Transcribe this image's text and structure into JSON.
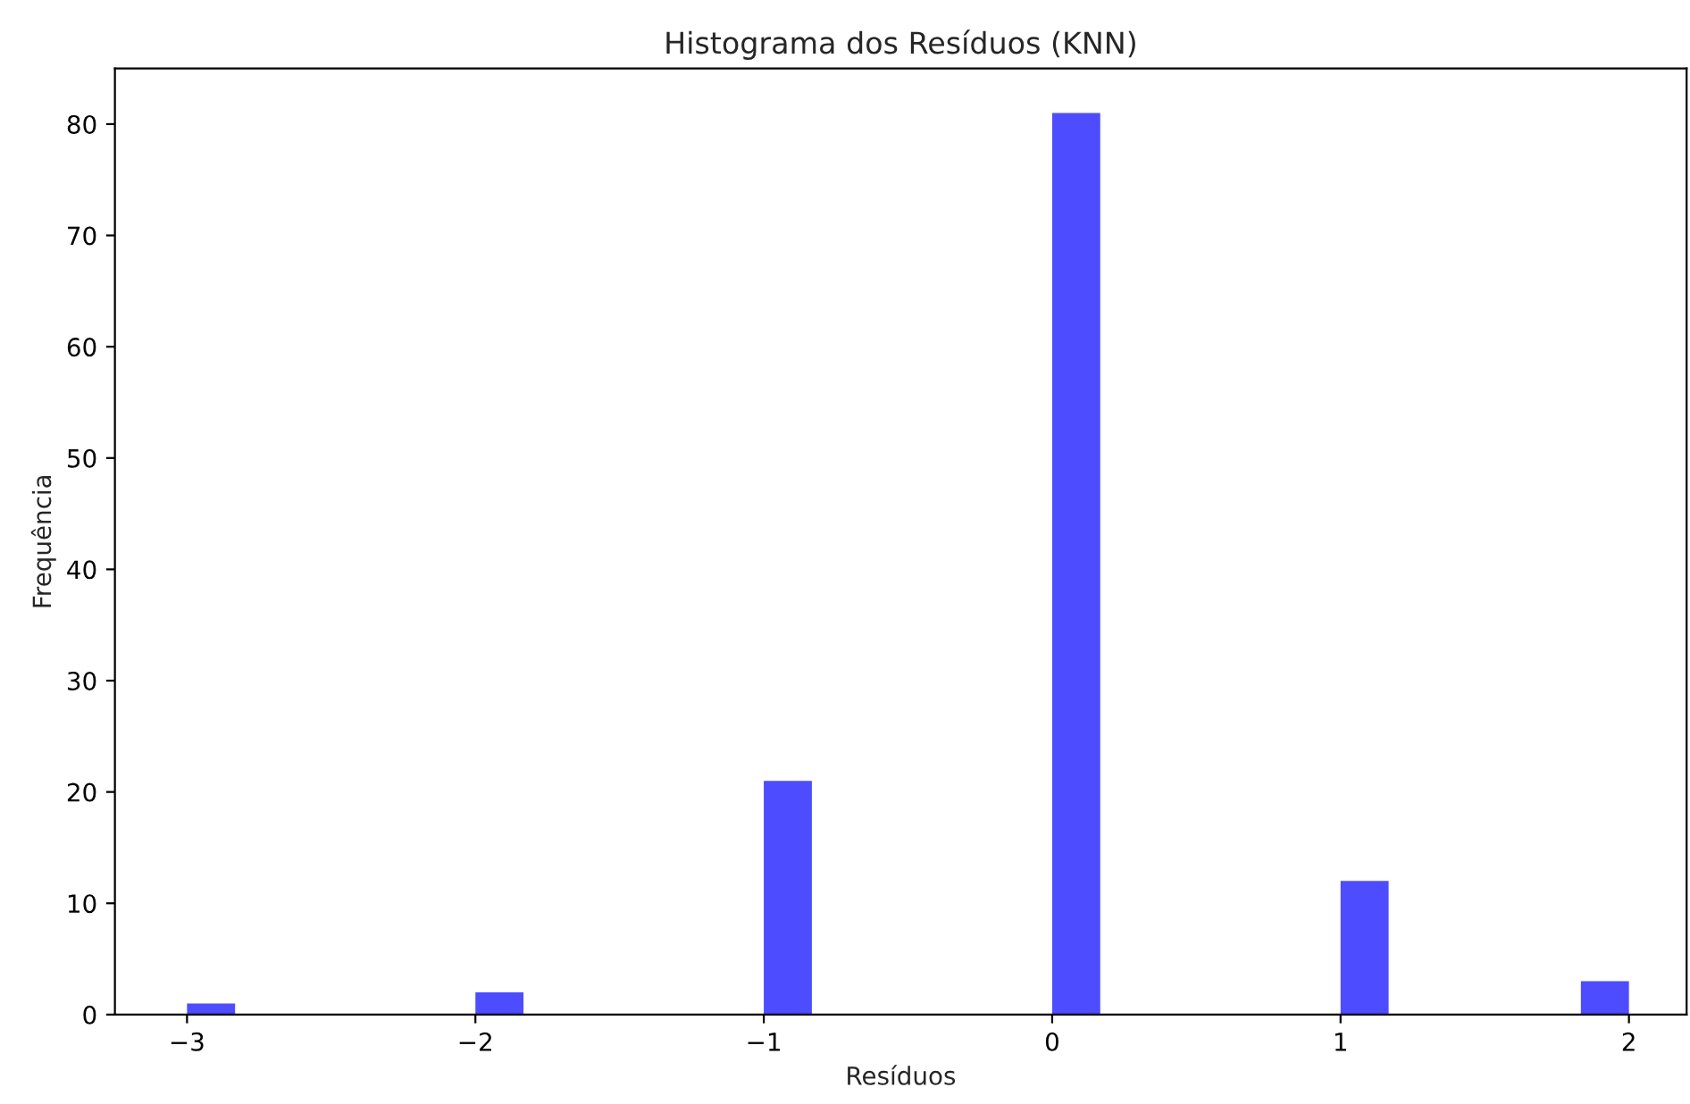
{
  "chart_data": {
    "type": "histogram",
    "title": "Histograma dos Resíduos (KNN)",
    "xlabel": "Resíduos",
    "ylabel": "Frequência",
    "bins": [
      -3,
      -2.8333,
      -2.6667,
      -2.5,
      -2.3333,
      -2.1667,
      -2,
      -1.8333,
      -1.6667,
      -1.5,
      -1.3333,
      -1.1667,
      -1,
      -0.8333,
      -0.6667,
      -0.5,
      -0.3333,
      -0.1667,
      0,
      0.1667,
      0.3333,
      0.5,
      0.6667,
      0.8333,
      1,
      1.1667,
      1.3333,
      1.5,
      1.6667,
      1.8333,
      2
    ],
    "values": [
      1,
      0,
      0,
      0,
      0,
      0,
      2,
      0,
      0,
      0,
      0,
      0,
      21,
      0,
      0,
      0,
      0,
      0,
      81,
      0,
      0,
      0,
      0,
      0,
      12,
      0,
      0,
      0,
      0,
      3
    ],
    "color": "#4d4dff",
    "xlim": [
      -3.25,
      2.2
    ],
    "xticks": [
      {
        "value": -3,
        "label": "−3"
      },
      {
        "value": -2,
        "label": "−2"
      },
      {
        "value": -1,
        "label": "−1"
      },
      0,
      1,
      2
    ],
    "ylim": [
      0,
      85
    ],
    "yticks": [
      0,
      10,
      20,
      30,
      40,
      50,
      60,
      70,
      80
    ],
    "grid": false
  }
}
